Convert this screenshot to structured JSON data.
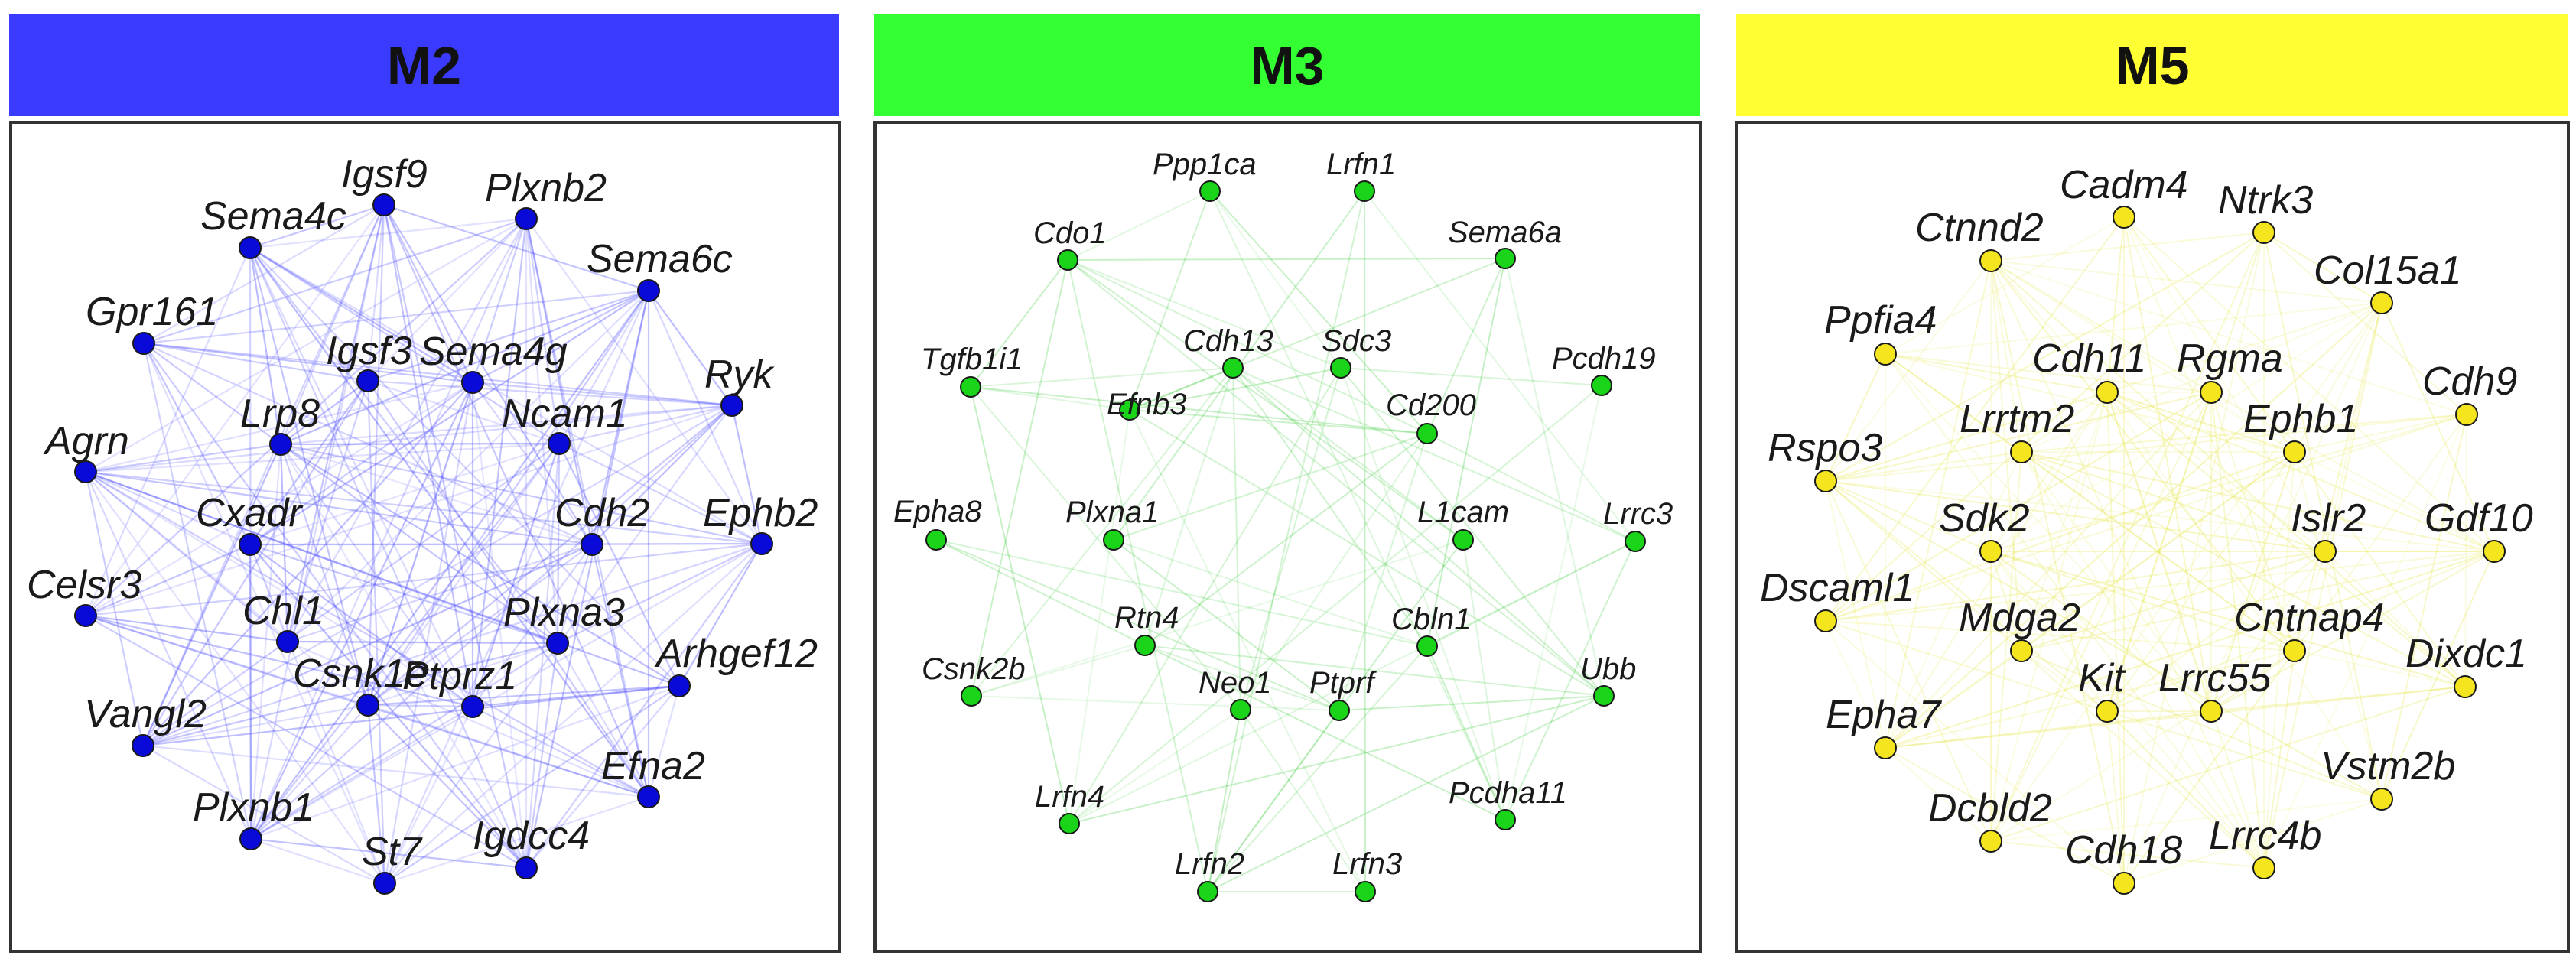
{
  "panels": [
    {
      "id": "M2",
      "title": "M2",
      "header_color": "#3b3bff",
      "node_color": "#0a0ad8",
      "edge_color": "#4d4dff",
      "nodes": [
        "Igsf9",
        "Plxnb2",
        "Sema4c",
        "Sema6c",
        "Gpr161",
        "Igsf3",
        "Sema4g",
        "Ryk",
        "Lrp8",
        "Ncam1",
        "Agrn",
        "Cxadr",
        "Cdh2",
        "Ephb2",
        "Celsr3",
        "Chl1",
        "Plxna3",
        "Csnk1e",
        "Ptprz1",
        "Arhgef12",
        "Vangl2",
        "Efna2",
        "Plxnb1",
        "St7",
        "Igdcc4"
      ]
    },
    {
      "id": "M3",
      "title": "M3",
      "header_color": "#33ff33",
      "node_color": "#19d419",
      "edge_color": "#3ccc3c",
      "nodes": [
        "Ppp1ca",
        "Lrfn1",
        "Cdo1",
        "Sema6a",
        "Tgfb1i1",
        "Cdh13",
        "Sdc3",
        "Pcdh19",
        "Efnb3",
        "Cd200",
        "Epha8",
        "Plxna1",
        "L1cam",
        "Lrrc3",
        "Rtn4",
        "Cbln1",
        "Csnk2b",
        "Neo1",
        "Ptprf",
        "Ubb",
        "Lrfn4",
        "Pcdha11",
        "Lrfn2",
        "Lrfn3"
      ]
    },
    {
      "id": "M5",
      "title": "M5",
      "header_color": "#ffff33",
      "node_color": "#f5e51f",
      "edge_color": "#e8e85a",
      "nodes": [
        "Cadm4",
        "Ntrk3",
        "Ctnnd2",
        "Col15a1",
        "Ppfia4",
        "Cdh11",
        "Rgma",
        "Cdh9",
        "Lrrtm2",
        "Ephb1",
        "Rspo3",
        "Sdk2",
        "Islr2",
        "Gdf10",
        "Dscaml1",
        "Mdga2",
        "Cntnap4",
        "Dixdc1",
        "Kit",
        "Lrrc55",
        "Epha7",
        "Vstm2b",
        "Dcbld2",
        "Cdh18",
        "Lrrc4b"
      ]
    }
  ]
}
